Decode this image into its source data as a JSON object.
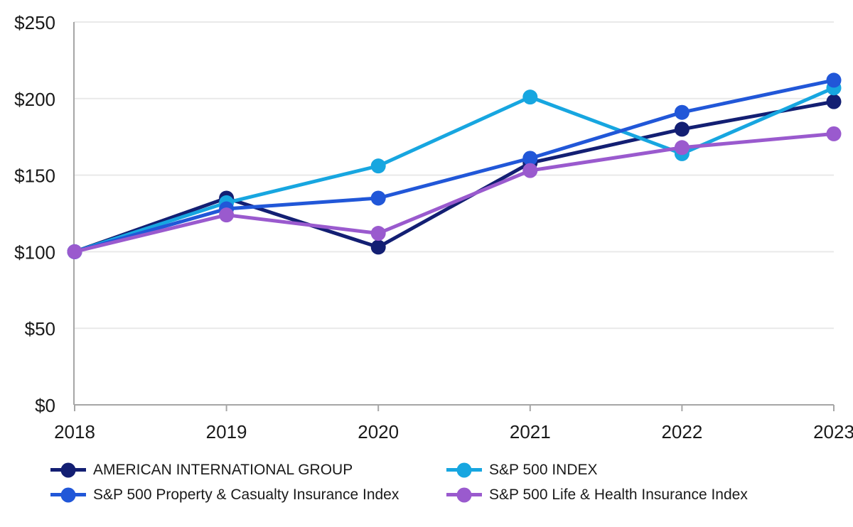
{
  "chart_data": {
    "type": "line",
    "title": "",
    "xlabel": "",
    "ylabel": "",
    "categories": [
      "2018",
      "2019",
      "2020",
      "2021",
      "2022",
      "2023"
    ],
    "series": [
      {
        "name": "AMERICAN INTERNATIONAL GROUP",
        "color": "#131f73",
        "values": [
          100,
          135,
          103,
          158,
          180,
          198
        ]
      },
      {
        "name": "S&P 500 INDEX",
        "color": "#17a6e0",
        "values": [
          100,
          132,
          156,
          201,
          164,
          207
        ]
      },
      {
        "name": "S&P 500 Property & Casualty Insurance Index",
        "color": "#2157d8",
        "values": [
          100,
          128,
          135,
          161,
          191,
          212
        ]
      },
      {
        "name": "S&P 500 Life & Health Insurance Index",
        "color": "#9a5ace",
        "values": [
          100,
          124,
          112,
          153,
          168,
          177
        ]
      }
    ],
    "y_axis": {
      "range": [
        0,
        250
      ],
      "ticks": [
        {
          "label": "$0",
          "value": 0
        },
        {
          "label": "$50",
          "value": 50
        },
        {
          "label": "$100",
          "value": 100
        },
        {
          "label": "$150",
          "value": 150
        },
        {
          "label": "$200",
          "value": 200
        },
        {
          "label": "$250",
          "value": 250
        }
      ]
    },
    "grid": true,
    "legend_position": "bottom",
    "grid_color": "#e9e9e9",
    "axis_color": "#a6a6a6",
    "text_color": "#1a1a1a"
  }
}
